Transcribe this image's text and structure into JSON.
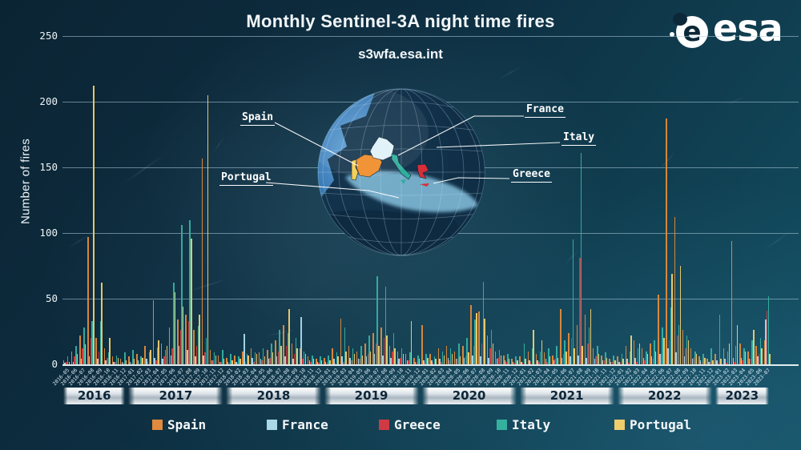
{
  "title": "Monthly Sentinel-3A night time fires",
  "subtitle": "s3wfa.esa.int",
  "logo": {
    "text": "esa"
  },
  "map_labels": {
    "spain": "Spain",
    "portugal": "Portugal",
    "france": "France",
    "italy": "Italy",
    "greece": "Greece"
  },
  "colors": {
    "background": "#0d2a3c",
    "grid": "#afcddc",
    "year_band_text": "#0d2638",
    "spain": "#e1893c",
    "france": "#a9d9e8",
    "greece": "#cf3a44",
    "italy": "#35b09e",
    "portugal": "#eecd6d"
  },
  "chart_data": {
    "type": "bar",
    "title": "Monthly Sentinel-3A night time fires",
    "xlabel": "",
    "ylabel": "Number of fires",
    "ylim": [
      0,
      250
    ],
    "y_ticks": [
      0,
      50,
      100,
      150,
      200,
      250
    ],
    "grid": true,
    "legend_position": "bottom",
    "categories": [
      "2016-05",
      "2016-06",
      "2016-07",
      "2016-08",
      "2016-09",
      "2016-10",
      "2016-11",
      "2016-12",
      "2017-01",
      "2017-02",
      "2017-03",
      "2017-04",
      "2017-05",
      "2017-06",
      "2017-07",
      "2017-08",
      "2017-09",
      "2017-10",
      "2017-11",
      "2017-12",
      "2018-01",
      "2018-02",
      "2018-03",
      "2018-04",
      "2018-05",
      "2018-06",
      "2018-07",
      "2018-08",
      "2018-09",
      "2018-10",
      "2018-11",
      "2018-12",
      "2019-01",
      "2019-02",
      "2019-03",
      "2019-04",
      "2019-05",
      "2019-06",
      "2019-07",
      "2019-08",
      "2019-09",
      "2019-10",
      "2019-11",
      "2019-12",
      "2020-01",
      "2020-02",
      "2020-03",
      "2020-04",
      "2020-05",
      "2020-06",
      "2020-07",
      "2020-08",
      "2020-09",
      "2020-10",
      "2020-11",
      "2020-12",
      "2021-01",
      "2021-02",
      "2021-03",
      "2021-04",
      "2021-05",
      "2021-06",
      "2021-07",
      "2021-08",
      "2021-09",
      "2021-10",
      "2021-11",
      "2021-12",
      "2022-01",
      "2022-02",
      "2022-03",
      "2022-04",
      "2022-05",
      "2022-06",
      "2022-07",
      "2022-08",
      "2022-09",
      "2022-10",
      "2022-11",
      "2022-12",
      "2023-01",
      "2023-02",
      "2023-03",
      "2023-04",
      "2023-05",
      "2023-06",
      "2023-07"
    ],
    "series": [
      {
        "name": "Spain",
        "color": "#e1893c",
        "values": [
          3,
          10,
          22,
          97,
          20,
          12,
          6,
          4,
          6,
          8,
          14,
          49,
          16,
          28,
          34,
          38,
          26,
          157,
          11,
          7,
          5,
          7,
          10,
          12,
          9,
          11,
          18,
          30,
          16,
          12,
          6,
          4,
          5,
          12,
          35,
          14,
          10,
          16,
          24,
          28,
          14,
          10,
          8,
          5,
          30,
          8,
          12,
          14,
          10,
          14,
          45,
          40,
          22,
          10,
          7,
          4,
          6,
          10,
          8,
          9,
          7,
          42,
          24,
          30,
          38,
          12,
          7,
          4,
          6,
          14,
          18,
          12,
          16,
          53,
          187,
          112,
          26,
          12,
          6,
          4,
          8,
          12,
          94,
          16,
          10,
          14,
          18
        ]
      },
      {
        "name": "France",
        "color": "#a9d9e8",
        "values": [
          1,
          2,
          4,
          6,
          4,
          3,
          2,
          2,
          2,
          3,
          4,
          5,
          4,
          7,
          14,
          11,
          6,
          7,
          3,
          2,
          2,
          2,
          23,
          5,
          4,
          4,
          6,
          6,
          4,
          36,
          3,
          2,
          2,
          4,
          6,
          5,
          4,
          6,
          8,
          7,
          5,
          4,
          3,
          2,
          3,
          3,
          4,
          5,
          4,
          5,
          7,
          6,
          5,
          4,
          3,
          2,
          2,
          3,
          3,
          4,
          3,
          5,
          6,
          7,
          5,
          4,
          3,
          2,
          2,
          4,
          5,
          5,
          6,
          8,
          12,
          9,
          6,
          4,
          3,
          2,
          3,
          4,
          5,
          5,
          4,
          6,
          34
        ]
      },
      {
        "name": "Greece",
        "color": "#cf3a44",
        "values": [
          2,
          6,
          12,
          20,
          10,
          5,
          2,
          1,
          1,
          1,
          2,
          3,
          6,
          12,
          26,
          33,
          14,
          9,
          3,
          2,
          1,
          1,
          2,
          2,
          3,
          5,
          10,
          14,
          8,
          4,
          2,
          1,
          1,
          1,
          2,
          3,
          4,
          8,
          16,
          20,
          10,
          5,
          3,
          2,
          1,
          1,
          2,
          3,
          4,
          6,
          14,
          16,
          12,
          5,
          2,
          1,
          1,
          2,
          2,
          2,
          4,
          8,
          20,
          81,
          16,
          6,
          3,
          2,
          1,
          1,
          2,
          3,
          4,
          8,
          18,
          22,
          12,
          5,
          2,
          2,
          1,
          1,
          2,
          3,
          4,
          8,
          41
        ]
      },
      {
        "name": "Italy",
        "color": "#35b09e",
        "values": [
          6,
          14,
          28,
          33,
          33,
          9,
          7,
          9,
          11,
          6,
          9,
          13,
          11,
          62,
          106,
          110,
          29,
          20,
          9,
          11,
          8,
          6,
          8,
          9,
          12,
          16,
          26,
          24,
          20,
          10,
          7,
          6,
          7,
          9,
          28,
          12,
          14,
          22,
          67,
          59,
          24,
          12,
          9,
          7,
          8,
          6,
          10,
          12,
          16,
          20,
          34,
          63,
          26,
          11,
          8,
          6,
          16,
          12,
          10,
          12,
          14,
          18,
          95,
          161,
          28,
          14,
          9,
          7,
          8,
          10,
          12,
          10,
          18,
          28,
          43,
          30,
          22,
          10,
          8,
          12,
          38,
          10,
          14,
          12,
          18,
          20,
          52
        ]
      },
      {
        "name": "Portugal",
        "color": "#eecd6d",
        "values": [
          2,
          8,
          15,
          212,
          62,
          20,
          5,
          3,
          4,
          5,
          11,
          18,
          14,
          55,
          44,
          96,
          38,
          205,
          7,
          4,
          3,
          4,
          7,
          8,
          6,
          9,
          14,
          42,
          12,
          8,
          4,
          3,
          3,
          6,
          10,
          8,
          7,
          10,
          14,
          22,
          12,
          8,
          33,
          4,
          5,
          4,
          7,
          8,
          6,
          9,
          39,
          35,
          16,
          7,
          4,
          3,
          4,
          26,
          18,
          6,
          5,
          10,
          12,
          14,
          42,
          8,
          5,
          3,
          4,
          22,
          16,
          8,
          10,
          20,
          69,
          75,
          18,
          8,
          5,
          3,
          4,
          16,
          30,
          10,
          26,
          12,
          8
        ]
      }
    ]
  }
}
